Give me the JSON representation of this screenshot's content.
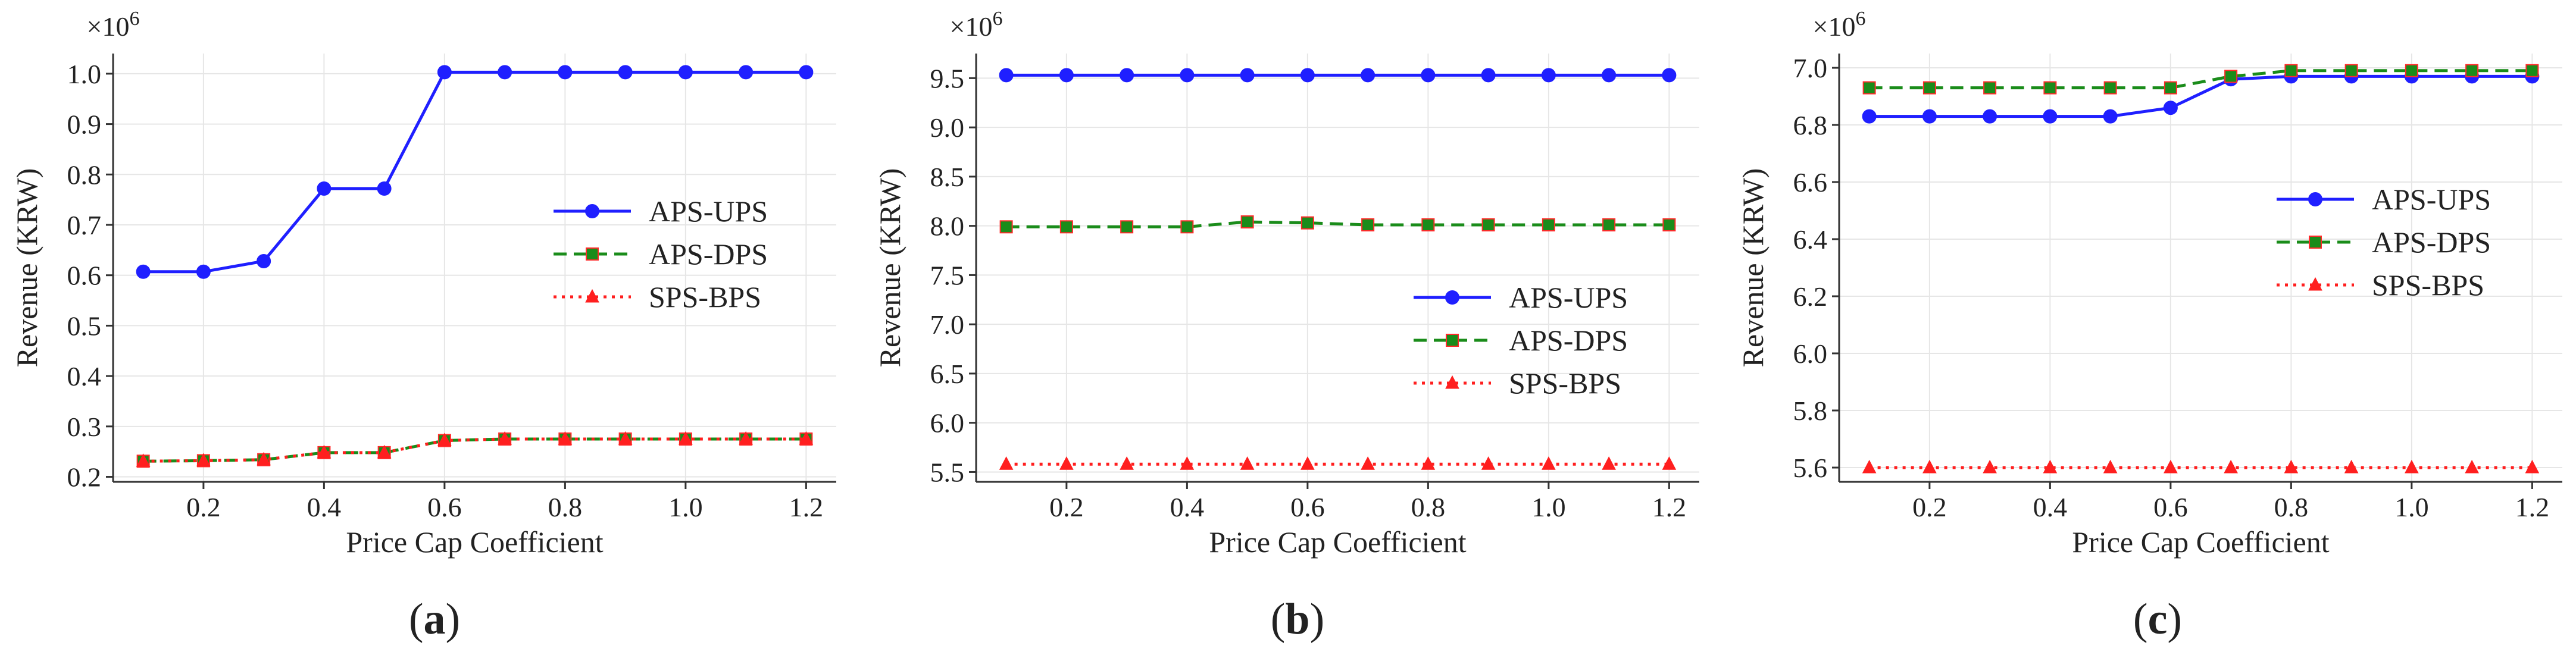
{
  "chart_data": [
    {
      "type": "line",
      "panel_label": "a",
      "title": "",
      "xlabel": "Price Cap Coefficient",
      "ylabel": "Revenue (KRW)",
      "y_multiplier": "×10",
      "y_multiplier_exp": "6",
      "x": [
        0.1,
        0.2,
        0.3,
        0.4,
        0.5,
        0.6,
        0.7,
        0.8,
        0.9,
        1.0,
        1.1,
        1.2
      ],
      "xticks": [
        0.2,
        0.4,
        0.6,
        0.8,
        1.0,
        1.2
      ],
      "xtick_labels": [
        "0.2",
        "0.4",
        "0.6",
        "0.8",
        "1.0",
        "1.2"
      ],
      "xlim": [
        0.05,
        1.25
      ],
      "yticks": [
        0.2,
        0.3,
        0.4,
        0.5,
        0.6,
        0.7,
        0.8,
        0.9,
        1.0
      ],
      "ytick_labels": [
        "0.2",
        "0.3",
        "0.4",
        "0.5",
        "0.6",
        "0.7",
        "0.8",
        "0.9",
        "1.0"
      ],
      "ylim": [
        0.19,
        1.04
      ],
      "grid": true,
      "legend_position": "center-right",
      "series": [
        {
          "name": "APS-UPS",
          "color": "#1f1fff",
          "style": "solid",
          "marker": "circle",
          "values": [
            0.607,
            0.607,
            0.628,
            0.772,
            0.772,
            1.003,
            1.003,
            1.003,
            1.003,
            1.003,
            1.003,
            1.003
          ]
        },
        {
          "name": "APS-DPS",
          "color": "#1a8c1a",
          "style": "dashed",
          "marker": "square",
          "values": [
            0.231,
            0.232,
            0.234,
            0.248,
            0.248,
            0.272,
            0.275,
            0.275,
            0.275,
            0.275,
            0.275,
            0.275
          ]
        },
        {
          "name": "SPS-BPS",
          "color": "#ff1f1f",
          "style": "dotted",
          "marker": "triangle",
          "values": [
            0.231,
            0.232,
            0.234,
            0.248,
            0.248,
            0.272,
            0.275,
            0.275,
            0.275,
            0.275,
            0.275,
            0.275
          ]
        }
      ]
    },
    {
      "type": "line",
      "panel_label": "b",
      "title": "",
      "xlabel": "Price Cap Coefficient",
      "ylabel": "Revenue (KRW)",
      "y_multiplier": "×10",
      "y_multiplier_exp": "6",
      "x": [
        0.1,
        0.2,
        0.3,
        0.4,
        0.5,
        0.6,
        0.7,
        0.8,
        0.9,
        1.0,
        1.1,
        1.2
      ],
      "xticks": [
        0.2,
        0.4,
        0.6,
        0.8,
        1.0,
        1.2
      ],
      "xtick_labels": [
        "0.2",
        "0.4",
        "0.6",
        "0.8",
        "1.0",
        "1.2"
      ],
      "xlim": [
        0.05,
        1.25
      ],
      "yticks": [
        5.5,
        6.0,
        6.5,
        7.0,
        7.5,
        8.0,
        8.5,
        9.0,
        9.5
      ],
      "ytick_labels": [
        "5.5",
        "6.0",
        "6.5",
        "7.0",
        "7.5",
        "8.0",
        "8.5",
        "9.0",
        "9.5"
      ],
      "ylim": [
        5.4,
        9.75
      ],
      "grid": true,
      "legend_position": "lower-right",
      "series": [
        {
          "name": "APS-UPS",
          "color": "#1f1fff",
          "style": "solid",
          "marker": "circle",
          "values": [
            9.53,
            9.53,
            9.53,
            9.53,
            9.53,
            9.53,
            9.53,
            9.53,
            9.53,
            9.53,
            9.53,
            9.53
          ]
        },
        {
          "name": "APS-DPS",
          "color": "#1a8c1a",
          "style": "dashed",
          "marker": "square",
          "values": [
            7.99,
            7.99,
            7.99,
            7.99,
            8.04,
            8.03,
            8.01,
            8.01,
            8.01,
            8.01,
            8.01,
            8.01
          ]
        },
        {
          "name": "SPS-BPS",
          "color": "#ff1f1f",
          "style": "dotted",
          "marker": "triangle",
          "values": [
            5.58,
            5.58,
            5.58,
            5.58,
            5.58,
            5.58,
            5.58,
            5.58,
            5.58,
            5.58,
            5.58,
            5.58
          ]
        }
      ]
    },
    {
      "type": "line",
      "panel_label": "c",
      "title": "",
      "xlabel": "Price Cap Coefficient",
      "ylabel": "Revenue (KRW)",
      "y_multiplier": "×10",
      "y_multiplier_exp": "6",
      "x": [
        0.1,
        0.2,
        0.3,
        0.4,
        0.5,
        0.6,
        0.7,
        0.8,
        0.9,
        1.0,
        1.1,
        1.2
      ],
      "xticks": [
        0.2,
        0.4,
        0.6,
        0.8,
        1.0,
        1.2
      ],
      "xtick_labels": [
        "0.2",
        "0.4",
        "0.6",
        "0.8",
        "1.0",
        "1.2"
      ],
      "xlim": [
        0.05,
        1.25
      ],
      "yticks": [
        5.6,
        5.8,
        6.0,
        6.2,
        6.4,
        6.6,
        6.8,
        7.0
      ],
      "ytick_labels": [
        "5.6",
        "5.8",
        "6.0",
        "6.2",
        "6.4",
        "6.6",
        "6.8",
        "7.0"
      ],
      "ylim": [
        5.55,
        7.05
      ],
      "grid": true,
      "legend_position": "center-right",
      "series": [
        {
          "name": "APS-UPS",
          "color": "#1f1fff",
          "style": "solid",
          "marker": "circle",
          "values": [
            6.83,
            6.83,
            6.83,
            6.83,
            6.83,
            6.86,
            6.96,
            6.97,
            6.97,
            6.97,
            6.97,
            6.97
          ]
        },
        {
          "name": "APS-DPS",
          "color": "#1a8c1a",
          "style": "dashed",
          "marker": "square",
          "values": [
            6.93,
            6.93,
            6.93,
            6.93,
            6.93,
            6.93,
            6.97,
            6.99,
            6.99,
            6.99,
            6.99,
            6.99
          ]
        },
        {
          "name": "SPS-BPS",
          "color": "#ff1f1f",
          "style": "dotted",
          "marker": "triangle",
          "values": [
            5.6,
            5.6,
            5.6,
            5.6,
            5.6,
            5.6,
            5.6,
            5.6,
            5.6,
            5.6,
            5.6,
            5.6
          ]
        }
      ]
    }
  ]
}
